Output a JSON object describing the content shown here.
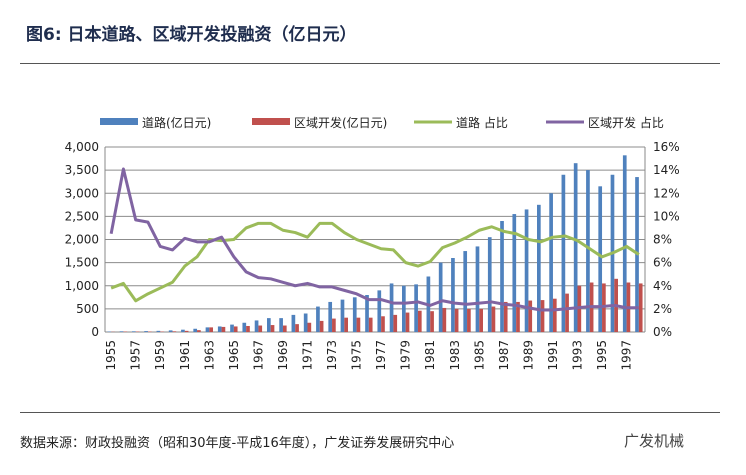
{
  "title": "图6:  日本道路、区域开发投融资（亿日元）",
  "source": "数据来源：财政投融资（昭和30年度-平成16年度），广发证券发展研究中心",
  "watermark": "广发机械",
  "chart_data": {
    "type": "bar+line",
    "title": "",
    "legend_position": "top",
    "grid": true,
    "x": [
      1955,
      1956,
      1957,
      1958,
      1959,
      1960,
      1961,
      1962,
      1963,
      1964,
      1965,
      1966,
      1967,
      1968,
      1969,
      1970,
      1971,
      1972,
      1973,
      1974,
      1975,
      1976,
      1977,
      1978,
      1979,
      1980,
      1981,
      1982,
      1983,
      1984,
      1985,
      1986,
      1987,
      1988,
      1989,
      1990,
      1991,
      1992,
      1993,
      1994,
      1995,
      1996,
      1997,
      1998
    ],
    "x_tick_labels": [
      "1955",
      "1957",
      "1959",
      "1961",
      "1963",
      "1965",
      "1967",
      "1969",
      "1971",
      "1973",
      "1975",
      "1977",
      "1979",
      "1981",
      "1983",
      "1985",
      "1987",
      "1989",
      "1991",
      "1993",
      "1995",
      "1997"
    ],
    "y_left": {
      "range": [
        0,
        4000
      ],
      "ticks": [
        "0",
        "500",
        "1,000",
        "1,500",
        "2,000",
        "2,500",
        "3,000",
        "3,500",
        "4,000"
      ]
    },
    "y_right": {
      "range": [
        0,
        16
      ],
      "ticks": [
        "0%",
        "2%",
        "4%",
        "6%",
        "8%",
        "10%",
        "12%",
        "14%",
        "16%"
      ]
    },
    "series": [
      {
        "name": "道路(亿日元)",
        "type": "bar",
        "axis": "left",
        "color": "#4f81bd",
        "values": [
          10,
          15,
          15,
          20,
          25,
          35,
          50,
          70,
          100,
          120,
          160,
          200,
          250,
          300,
          300,
          370,
          400,
          550,
          650,
          700,
          750,
          800,
          900,
          1050,
          1000,
          1030,
          1200,
          1500,
          1600,
          1750,
          1850,
          2050,
          2400,
          2550,
          2650,
          2750,
          3000,
          3400,
          3650,
          3500,
          3150,
          3400,
          3820,
          3350
        ]
      },
      {
        "name": "区域开发(亿日元)",
        "type": "bar",
        "axis": "left",
        "color": "#c0504d",
        "values": [
          5,
          10,
          10,
          10,
          10,
          15,
          25,
          40,
          100,
          110,
          120,
          130,
          140,
          150,
          140,
          170,
          200,
          240,
          290,
          310,
          310,
          310,
          340,
          370,
          420,
          460,
          450,
          520,
          500,
          500,
          500,
          550,
          650,
          650,
          680,
          690,
          720,
          830,
          1000,
          1070,
          1050,
          1150,
          1070,
          1050
        ]
      },
      {
        "name": "道路 占比",
        "type": "line",
        "axis": "right",
        "color": "#9bbb59",
        "values": [
          3.8,
          4.2,
          2.7,
          3.3,
          3.8,
          4.3,
          5.7,
          6.5,
          8.0,
          7.9,
          8.0,
          9.0,
          9.4,
          9.4,
          8.8,
          8.6,
          8.2,
          9.4,
          9.4,
          8.6,
          8.0,
          7.6,
          7.2,
          7.1,
          6.0,
          5.7,
          6.1,
          7.3,
          7.7,
          8.2,
          8.8,
          9.1,
          8.7,
          8.5,
          8.0,
          7.8,
          8.2,
          8.3,
          7.9,
          7.2,
          6.5,
          6.9,
          7.4,
          6.7
        ]
      },
      {
        "name": "区域开发 占比",
        "type": "line",
        "axis": "right",
        "color": "#8064a2",
        "values": [
          8.5,
          14.1,
          9.7,
          9.5,
          7.4,
          7.1,
          8.1,
          7.8,
          7.8,
          8.2,
          6.5,
          5.2,
          4.7,
          4.6,
          4.3,
          4.0,
          4.2,
          3.9,
          3.9,
          3.6,
          3.3,
          2.8,
          2.8,
          2.5,
          2.5,
          2.6,
          2.3,
          2.7,
          2.5,
          2.4,
          2.5,
          2.6,
          2.4,
          2.3,
          2.1,
          1.9,
          1.9,
          2.0,
          2.1,
          2.2,
          2.2,
          2.3,
          2.1,
          2.1
        ]
      }
    ]
  }
}
